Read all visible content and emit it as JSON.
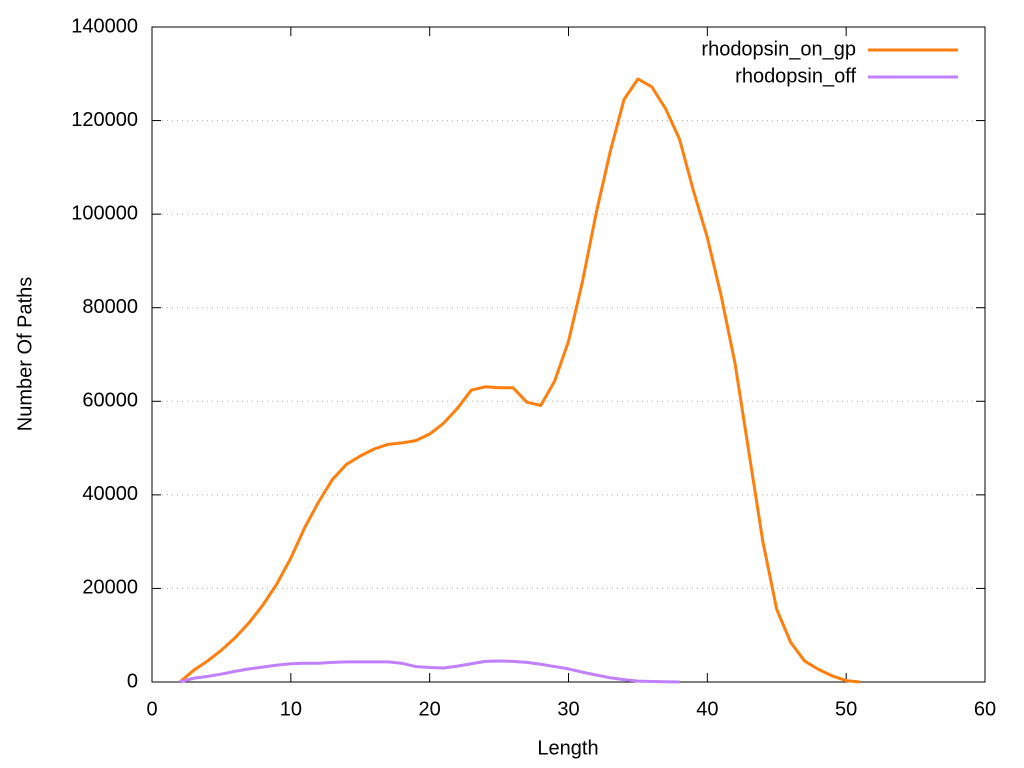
{
  "chart_data": {
    "type": "line",
    "xlabel": "Length",
    "ylabel": "Number Of Paths",
    "xlim": [
      0,
      60
    ],
    "xticks": [
      0,
      10,
      20,
      30,
      40,
      50,
      60
    ],
    "ylim": [
      0,
      140000
    ],
    "yticks": [
      0,
      20000,
      40000,
      60000,
      80000,
      100000,
      120000,
      140000
    ],
    "grid": true,
    "legend": "top-right",
    "series": [
      {
        "name": "rhodopsin_on_gp",
        "color": "#ff7f0e",
        "x": [
          2,
          3,
          4,
          5,
          6,
          7,
          8,
          9,
          10,
          11,
          12,
          13,
          14,
          15,
          16,
          17,
          18,
          19,
          20,
          21,
          22,
          23,
          24,
          25,
          26,
          27,
          28,
          29,
          30,
          31,
          32,
          33,
          34,
          35,
          36,
          37,
          38,
          39,
          40,
          41,
          42,
          43,
          44,
          45,
          46,
          47,
          48,
          49,
          50,
          51
        ],
        "values": [
          0,
          2500,
          4500,
          6800,
          9500,
          12700,
          16500,
          21000,
          26500,
          33000,
          38500,
          43300,
          46500,
          48300,
          49800,
          50800,
          51100,
          51600,
          53000,
          55300,
          58500,
          62400,
          63100,
          62900,
          62900,
          59800,
          59100,
          64300,
          72800,
          85500,
          100300,
          113300,
          124500,
          128900,
          127200,
          122500,
          116000,
          105000,
          95000,
          82500,
          68000,
          49000,
          30000,
          15500,
          8500,
          4500,
          2700,
          1300,
          300,
          0
        ]
      },
      {
        "name": "rhodopsin_off",
        "color": "#c080ff",
        "x": [
          2,
          3,
          4,
          5,
          6,
          7,
          8,
          9,
          10,
          11,
          12,
          13,
          14,
          15,
          16,
          17,
          18,
          19,
          20,
          21,
          22,
          23,
          24,
          25,
          26,
          27,
          28,
          29,
          30,
          31,
          32,
          33,
          34,
          35,
          36,
          37,
          38
        ],
        "values": [
          0,
          800,
          1200,
          1700,
          2300,
          2800,
          3200,
          3600,
          3900,
          4000,
          4000,
          4200,
          4300,
          4300,
          4300,
          4300,
          4000,
          3300,
          3100,
          3000,
          3400,
          3900,
          4400,
          4500,
          4400,
          4200,
          3800,
          3300,
          2800,
          2100,
          1500,
          900,
          500,
          200,
          100,
          50,
          0
        ]
      }
    ]
  }
}
